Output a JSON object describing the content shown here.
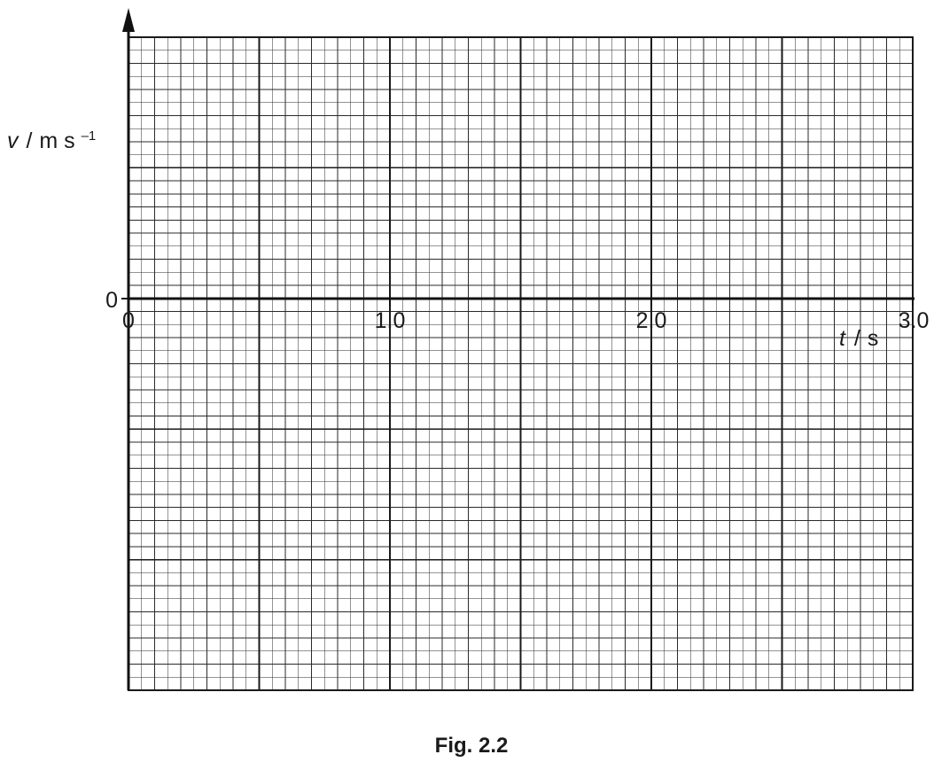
{
  "chart_data": {
    "type": "line",
    "title": "",
    "xlabel_var": "t",
    "xlabel_unit": "s",
    "ylabel_var": "v",
    "ylabel_unit": "m s",
    "ylabel_exp": "–1",
    "xlim": [
      0,
      3.0
    ],
    "x_major_step": 0.5,
    "x_minor_per_major": 10,
    "y_major_cells_above_zero": 2,
    "y_major_cells_below_zero": 3,
    "y_minor_per_major": 10,
    "x_ticks": [
      "0",
      "1.0",
      "2.0",
      "3.0"
    ],
    "x_tick_values": [
      0,
      1.0,
      2.0,
      3.0
    ],
    "y_zero_label": "0",
    "grid": true,
    "series": []
  },
  "caption": "Fig. 2.2"
}
